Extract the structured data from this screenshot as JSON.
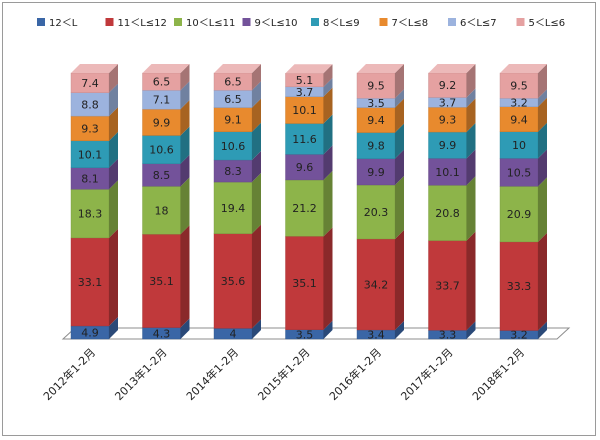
{
  "chart_data": {
    "type": "bar",
    "stacked": true,
    "style": "3d-stacked-column",
    "categories": [
      "2012年1-2月",
      "2013年1-2月",
      "2014年1-2月",
      "2015年1-2月",
      "2016年1-2月",
      "2017年1-2月",
      "2018年1-2月"
    ],
    "series": [
      {
        "name": "12＜L",
        "color": "#3a66a6",
        "values": [
          4.9,
          4.3,
          4,
          3.5,
          3.4,
          3.3,
          3.2
        ]
      },
      {
        "name": "11＜L≤12",
        "color": "#c0393b",
        "values": [
          33.1,
          35.1,
          35.6,
          35.1,
          34.2,
          33.7,
          33.3
        ]
      },
      {
        "name": "10＜L≤11",
        "color": "#8db44a",
        "values": [
          18.3,
          18,
          19.4,
          21.2,
          20.3,
          20.8,
          20.9
        ]
      },
      {
        "name": "9＜L≤10",
        "color": "#73529a",
        "values": [
          8.1,
          8.5,
          8.3,
          9.6,
          9.9,
          10.1,
          10.5
        ]
      },
      {
        "name": "8＜L≤9",
        "color": "#2e9bb5",
        "values": [
          10.1,
          10.6,
          10.6,
          11.6,
          9.8,
          9.9,
          10
        ]
      },
      {
        "name": "7＜L≤8",
        "color": "#e88a2e",
        "values": [
          9.3,
          9.9,
          9.1,
          10.1,
          9.4,
          9.3,
          9.4
        ]
      },
      {
        "name": "6＜L≤7",
        "color": "#9cb3de",
        "values": [
          8.8,
          7.1,
          6.5,
          3.7,
          3.5,
          3.7,
          3.2
        ]
      },
      {
        "name": "5＜L≤6",
        "color": "#e5a1a1",
        "values": [
          7.4,
          6.5,
          6.5,
          5.1,
          9.5,
          9.2,
          9.5
        ]
      }
    ],
    "ylim": [
      0,
      100
    ],
    "legend": "top",
    "grid": false,
    "data_labels": true
  }
}
